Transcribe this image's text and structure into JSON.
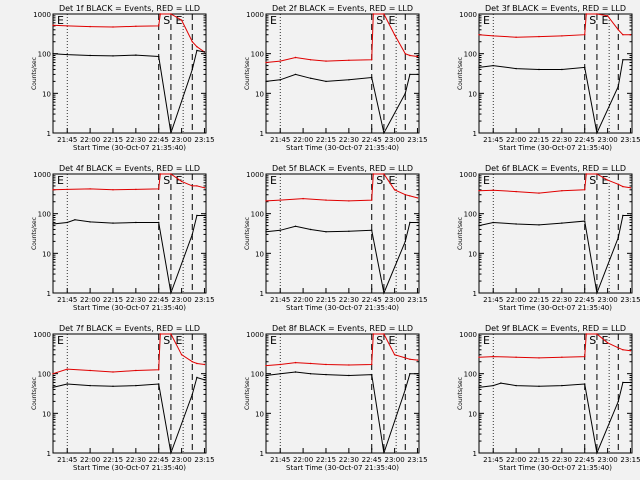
{
  "chart_data": [
    {
      "type": "line",
      "title": "Det 1f BLACK = Events, RED = LLD",
      "xlabel": "Start Time (30-Oct-07 21:35:40)",
      "ylabel": "Counts/sec",
      "xticks": [
        "21:45",
        "22:00",
        "22:15",
        "22:30",
        "22:45",
        "23:00",
        "23:15"
      ],
      "yticks": [
        "1",
        "10",
        "100",
        "1000"
      ],
      "ylim": [
        1,
        1000
      ],
      "yscale": "log",
      "xrange": [
        "21:35:40",
        "23:16"
      ],
      "vlines": {
        "dotted": [
          "21:45",
          "23:01"
        ],
        "dashed": [
          "22:45",
          "22:53",
          "23:07"
        ]
      },
      "markers": [
        "E",
        "S",
        "E"
      ],
      "series": [
        {
          "color": "#e00000",
          "x": [
            "21:35:40",
            "21:45",
            "22:00",
            "22:15",
            "22:30",
            "22:45",
            "22:46",
            "22:53",
            "23:00",
            "23:07",
            "23:10",
            "23:15"
          ],
          "values": [
            520,
            500,
            480,
            470,
            490,
            500,
            1000,
            1000,
            700,
            200,
            150,
            110
          ]
        },
        {
          "color": "#000000",
          "x": [
            "21:35:40",
            "21:45",
            "22:00",
            "22:15",
            "22:30",
            "22:45",
            "22:53",
            "23:07",
            "23:10",
            "23:15"
          ],
          "values": [
            100,
            95,
            90,
            88,
            92,
            85,
            0,
            40,
            120,
            110
          ]
        }
      ]
    },
    {
      "type": "line",
      "title": "Det 2f BLACK = Events, RED = LLD",
      "xlabel": "Start Time (30-Oct-07 21:35:40)",
      "ylabel": "Counts/sec",
      "xticks": [
        "21:45",
        "22:00",
        "22:15",
        "22:30",
        "22:45",
        "23:00",
        "23:15"
      ],
      "yticks": [
        "1",
        "10",
        "100",
        "1000"
      ],
      "ylim": [
        1,
        1000
      ],
      "yscale": "log",
      "xrange": [
        "21:35:40",
        "23:16"
      ],
      "vlines": {
        "dotted": [
          "21:45",
          "23:01"
        ],
        "dashed": [
          "22:45",
          "22:53",
          "23:07"
        ]
      },
      "markers": [
        "E",
        "S",
        "E"
      ],
      "series": [
        {
          "color": "#e00000",
          "x": [
            "21:35:40",
            "21:45",
            "21:55",
            "22:05",
            "22:15",
            "22:30",
            "22:45",
            "22:46",
            "22:53",
            "23:00",
            "23:07",
            "23:10",
            "23:15"
          ],
          "values": [
            60,
            65,
            80,
            70,
            65,
            68,
            70,
            1000,
            1000,
            300,
            100,
            90,
            85
          ]
        },
        {
          "color": "#000000",
          "x": [
            "21:35:40",
            "21:45",
            "21:55",
            "22:05",
            "22:15",
            "22:30",
            "22:45",
            "22:53",
            "23:07",
            "23:10",
            "23:15"
          ],
          "values": [
            20,
            22,
            30,
            24,
            20,
            22,
            25,
            0,
            10,
            30,
            30
          ]
        }
      ]
    },
    {
      "type": "line",
      "title": "Det 3f BLACK = Events, RED = LLD",
      "xlabel": "Start Time (30-Oct-07 21:35:40)",
      "ylabel": "Counts/sec",
      "xticks": [
        "21:45",
        "22:00",
        "22:15",
        "22:30",
        "22:45",
        "23:00",
        "23:15"
      ],
      "yticks": [
        "1",
        "10",
        "100",
        "1000"
      ],
      "ylim": [
        1,
        1000
      ],
      "yscale": "log",
      "xrange": [
        "21:35:40",
        "23:16"
      ],
      "vlines": {
        "dotted": [
          "21:45",
          "23:01"
        ],
        "dashed": [
          "22:45",
          "22:53",
          "23:07"
        ]
      },
      "markers": [
        "E",
        "S",
        "E"
      ],
      "series": [
        {
          "color": "#e00000",
          "x": [
            "21:35:40",
            "21:45",
            "22:00",
            "22:15",
            "22:30",
            "22:45",
            "22:46",
            "22:53",
            "23:00",
            "23:07",
            "23:10",
            "23:15"
          ],
          "values": [
            300,
            280,
            260,
            270,
            280,
            300,
            1000,
            1000,
            900,
            400,
            300,
            300
          ]
        },
        {
          "color": "#000000",
          "x": [
            "21:35:40",
            "21:45",
            "22:00",
            "22:15",
            "22:30",
            "22:45",
            "22:53",
            "23:07",
            "23:10",
            "23:15"
          ],
          "values": [
            45,
            50,
            42,
            40,
            40,
            45,
            0,
            15,
            70,
            70
          ]
        }
      ]
    },
    {
      "type": "line",
      "title": "Det 4f BLACK = Events, RED = LLD",
      "xlabel": "Start Time (30-Oct-07 21:35:40)",
      "ylabel": "Counts/sec",
      "xticks": [
        "21:45",
        "22:00",
        "22:15",
        "22:30",
        "22:45",
        "23:00",
        "23:15"
      ],
      "yticks": [
        "1",
        "10",
        "100",
        "1000"
      ],
      "ylim": [
        1,
        1000
      ],
      "yscale": "log",
      "xrange": [
        "21:35:40",
        "23:16"
      ],
      "vlines": {
        "dotted": [
          "21:45",
          "23:01"
        ],
        "dashed": [
          "22:45",
          "22:53",
          "23:07"
        ]
      },
      "markers": [
        "E",
        "S",
        "E"
      ],
      "series": [
        {
          "color": "#e00000",
          "x": [
            "21:35:40",
            "21:45",
            "22:00",
            "22:15",
            "22:30",
            "22:45",
            "22:46",
            "22:53",
            "23:00",
            "23:07",
            "23:10",
            "23:15"
          ],
          "values": [
            400,
            410,
            420,
            400,
            410,
            420,
            1000,
            1000,
            650,
            500,
            500,
            450
          ]
        },
        {
          "color": "#000000",
          "x": [
            "21:35:40",
            "21:45",
            "21:50",
            "22:00",
            "22:15",
            "22:30",
            "22:45",
            "22:53",
            "23:07",
            "23:10",
            "23:15"
          ],
          "values": [
            55,
            60,
            70,
            62,
            58,
            60,
            60,
            0,
            30,
            90,
            90
          ]
        }
      ]
    },
    {
      "type": "line",
      "title": "Det 5f BLACK = Events, RED = LLD",
      "xlabel": "Start Time (30-Oct-07 21:35:40)",
      "ylabel": "Counts/sec",
      "xticks": [
        "21:45",
        "22:00",
        "22:15",
        "22:30",
        "22:45",
        "23:00",
        "23:15"
      ],
      "yticks": [
        "1",
        "10",
        "100",
        "1000"
      ],
      "ylim": [
        1,
        1000
      ],
      "yscale": "log",
      "xrange": [
        "21:35:40",
        "23:16"
      ],
      "vlines": {
        "dotted": [
          "21:45",
          "23:01"
        ],
        "dashed": [
          "22:45",
          "22:53",
          "23:07"
        ]
      },
      "markers": [
        "E",
        "S",
        "E"
      ],
      "series": [
        {
          "color": "#e00000",
          "x": [
            "21:35:40",
            "21:45",
            "22:00",
            "22:15",
            "22:30",
            "22:45",
            "22:46",
            "22:53",
            "23:00",
            "23:07",
            "23:10",
            "23:15"
          ],
          "values": [
            210,
            220,
            240,
            220,
            210,
            220,
            1000,
            1000,
            400,
            300,
            280,
            250
          ]
        },
        {
          "color": "#000000",
          "x": [
            "21:35:40",
            "21:45",
            "21:55",
            "22:05",
            "22:15",
            "22:30",
            "22:45",
            "22:53",
            "23:07",
            "23:10",
            "23:15"
          ],
          "values": [
            35,
            38,
            48,
            40,
            35,
            36,
            38,
            0,
            20,
            60,
            60
          ]
        }
      ]
    },
    {
      "type": "line",
      "title": "Det 6f BLACK = Events, RED = LLD",
      "xlabel": "Start Time (30-Oct-07 21:35:40)",
      "ylabel": "Counts/sec",
      "xticks": [
        "21:45",
        "22:00",
        "22:15",
        "22:30",
        "22:45",
        "23:00",
        "23:15"
      ],
      "yticks": [
        "1",
        "10",
        "100",
        "1000"
      ],
      "ylim": [
        1,
        1000
      ],
      "yscale": "log",
      "xrange": [
        "21:35:40",
        "23:16"
      ],
      "vlines": {
        "dotted": [
          "21:45",
          "23:01"
        ],
        "dashed": [
          "22:45",
          "22:53",
          "23:07"
        ]
      },
      "markers": [
        "E",
        "S",
        "E"
      ],
      "series": [
        {
          "color": "#e00000",
          "x": [
            "21:35:40",
            "21:45",
            "22:00",
            "22:15",
            "22:30",
            "22:45",
            "22:46",
            "22:53",
            "23:00",
            "23:07",
            "23:10",
            "23:15"
          ],
          "values": [
            380,
            390,
            360,
            330,
            380,
            400,
            1000,
            1000,
            700,
            550,
            480,
            450
          ]
        },
        {
          "color": "#000000",
          "x": [
            "21:35:40",
            "21:45",
            "22:00",
            "22:15",
            "22:30",
            "22:45",
            "22:53",
            "23:07",
            "23:10",
            "23:15"
          ],
          "values": [
            50,
            60,
            55,
            52,
            58,
            65,
            0,
            25,
            90,
            90
          ]
        }
      ]
    },
    {
      "type": "line",
      "title": "Det 7f BLACK = Events, RED = LLD",
      "xlabel": "Start Time (30-Oct-07 21:35:40)",
      "ylabel": "Counts/sec",
      "xticks": [
        "21:45",
        "22:00",
        "22:15",
        "22:30",
        "22:45",
        "23:00",
        "23:15"
      ],
      "yticks": [
        "1",
        "10",
        "100",
        "1000"
      ],
      "ylim": [
        1,
        1000
      ],
      "yscale": "log",
      "xrange": [
        "21:35:40",
        "23:16"
      ],
      "vlines": {
        "dotted": [
          "21:45",
          "23:01"
        ],
        "dashed": [
          "22:45",
          "22:53",
          "23:07"
        ]
      },
      "markers": [
        "E",
        "S",
        "E"
      ],
      "series": [
        {
          "color": "#e00000",
          "x": [
            "21:35:40",
            "21:45",
            "22:00",
            "22:15",
            "22:30",
            "22:45",
            "22:46",
            "22:53",
            "23:00",
            "23:07",
            "23:10",
            "23:15"
          ],
          "values": [
            100,
            130,
            120,
            110,
            120,
            125,
            1000,
            1000,
            300,
            200,
            180,
            170
          ]
        },
        {
          "color": "#000000",
          "x": [
            "21:35:40",
            "21:45",
            "22:00",
            "22:15",
            "22:30",
            "22:45",
            "22:53",
            "23:07",
            "23:10",
            "23:15"
          ],
          "values": [
            45,
            55,
            50,
            48,
            50,
            55,
            0,
            30,
            80,
            70
          ]
        }
      ]
    },
    {
      "type": "line",
      "title": "Det 8f BLACK = Events, RED = LLD",
      "xlabel": "Start Time (30-Oct-07 21:35:40)",
      "ylabel": "Counts/sec",
      "xticks": [
        "21:45",
        "22:00",
        "22:15",
        "22:30",
        "22:45",
        "23:00",
        "23:15"
      ],
      "yticks": [
        "1",
        "10",
        "100",
        "1000"
      ],
      "ylim": [
        1,
        1000
      ],
      "yscale": "log",
      "xrange": [
        "21:35:40",
        "23:16"
      ],
      "vlines": {
        "dotted": [
          "21:45",
          "23:01"
        ],
        "dashed": [
          "22:45",
          "22:53",
          "23:07"
        ]
      },
      "markers": [
        "E",
        "S",
        "E"
      ],
      "series": [
        {
          "color": "#e00000",
          "x": [
            "21:35:40",
            "21:45",
            "21:55",
            "22:05",
            "22:15",
            "22:30",
            "22:45",
            "22:46",
            "22:53",
            "23:00",
            "23:07",
            "23:10",
            "23:15"
          ],
          "values": [
            160,
            170,
            190,
            180,
            170,
            165,
            170,
            1000,
            1000,
            300,
            250,
            230,
            220
          ]
        },
        {
          "color": "#000000",
          "x": [
            "21:35:40",
            "21:45",
            "21:55",
            "22:05",
            "22:15",
            "22:30",
            "22:45",
            "22:53",
            "23:07",
            "23:10",
            "23:15"
          ],
          "values": [
            90,
            100,
            110,
            100,
            95,
            90,
            95,
            0,
            40,
            100,
            100
          ]
        }
      ]
    },
    {
      "type": "line",
      "title": "Det 9f BLACK = Events, RED = LLD",
      "xlabel": "Start Time (30-Oct-07 21:35:40)",
      "ylabel": "Counts/sec",
      "xticks": [
        "21:45",
        "22:00",
        "22:15",
        "22:30",
        "22:45",
        "23:00",
        "23:15"
      ],
      "yticks": [
        "1",
        "10",
        "100",
        "1000"
      ],
      "ylim": [
        1,
        1000
      ],
      "yscale": "log",
      "xrange": [
        "21:35:40",
        "23:16"
      ],
      "vlines": {
        "dotted": [
          "21:45",
          "23:01"
        ],
        "dashed": [
          "22:45",
          "22:53",
          "23:07"
        ]
      },
      "markers": [
        "E",
        "S",
        "E"
      ],
      "series": [
        {
          "color": "#e00000",
          "x": [
            "21:35:40",
            "21:45",
            "22:00",
            "22:15",
            "22:30",
            "22:45",
            "22:46",
            "22:53",
            "23:00",
            "23:07",
            "23:10",
            "23:15"
          ],
          "values": [
            260,
            270,
            260,
            250,
            260,
            270,
            1000,
            1000,
            600,
            450,
            400,
            380
          ]
        },
        {
          "color": "#000000",
          "x": [
            "21:35:40",
            "21:45",
            "21:50",
            "22:00",
            "22:15",
            "22:30",
            "22:45",
            "22:53",
            "23:07",
            "23:10",
            "23:15"
          ],
          "values": [
            45,
            50,
            58,
            50,
            48,
            50,
            55,
            0,
            20,
            60,
            60
          ]
        }
      ]
    }
  ]
}
